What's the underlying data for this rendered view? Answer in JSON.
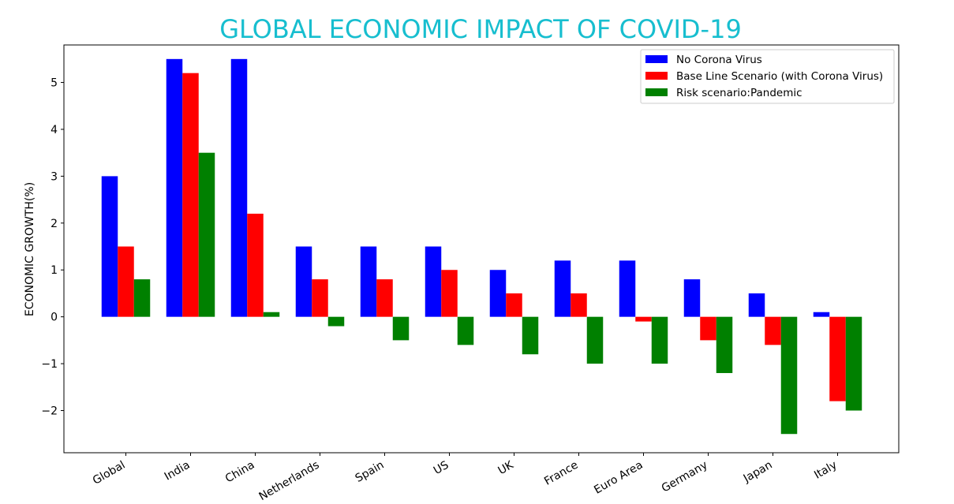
{
  "chart_data": {
    "type": "bar",
    "title": "GLOBAL ECONOMIC IMPACT OF COVID-19",
    "xlabel": "",
    "ylabel": "ECONOMIC GROWTH(%)",
    "categories": [
      "Global",
      "India",
      "China",
      "Netherlands",
      "Spain",
      "US",
      "UK",
      "France",
      "Euro Area",
      "Germany",
      "Japan",
      "Italy"
    ],
    "series": [
      {
        "name": "No Corona Virus",
        "color": "#0000ff",
        "values": [
          3.0,
          5.5,
          5.5,
          1.5,
          1.5,
          1.5,
          1.0,
          1.2,
          1.2,
          0.8,
          0.5,
          0.1
        ]
      },
      {
        "name": "Base Line Scenario (with Corona Virus)",
        "color": "#ff0000",
        "values": [
          1.5,
          5.2,
          2.2,
          0.8,
          0.8,
          1.0,
          0.5,
          0.5,
          -0.1,
          -0.5,
          -0.6,
          -1.8
        ]
      },
      {
        "name": "Risk scenario:Pandemic",
        "color": "#008000",
        "values": [
          0.8,
          3.5,
          0.1,
          -0.2,
          -0.5,
          -0.6,
          -0.8,
          -1.0,
          -1.0,
          -1.2,
          -2.5,
          -2.0
        ]
      }
    ],
    "ylim": [
      -2.9,
      5.8
    ],
    "yticks": [
      -2,
      -1,
      0,
      1,
      2,
      3,
      4,
      5
    ],
    "ytick_labels": [
      "−2",
      "−1",
      "0",
      "1",
      "2",
      "3",
      "4",
      "5"
    ],
    "grid": false,
    "legend_position": "top-right"
  }
}
